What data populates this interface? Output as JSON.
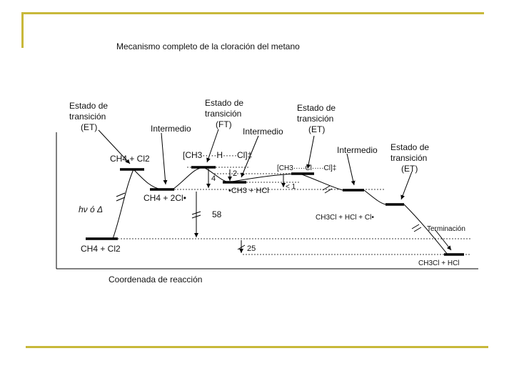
{
  "slide": {
    "title": "Mecanismo completo de la cloración del metano",
    "accent_color": "#c8b83a"
  },
  "diagram": {
    "axis_x_label": "Coordenada de reacción",
    "species": {
      "reactants": "CH4 + Cl2",
      "reactants_ts": "CH4 + Cl2",
      "intermediate_1": "CH4 + 2Cl•",
      "intermediate_2": "•CH3 + HCl",
      "intermediate_3": "CH3Cl + HCl + Cl•",
      "products": "CH3Cl + HCl"
    },
    "transition_states": {
      "ts1_label": "Estado de transición (ET)",
      "ts2_label": "Estado de transición (FT)",
      "ts3_label": "Estado de transición (ET)",
      "ts4_label": "Estado de transición (ET)",
      "complex_1": "[CH3·····H·····Cl]‡",
      "complex_2": "[CH3·····Cl·····Cl]‡"
    },
    "annotations": {
      "intermediate_a": "Intermedio",
      "intermediate_b": "Intermedio",
      "intermediate_c": "Intermedio",
      "activation": "hν ó Δ",
      "terminacion": "Terminación",
      "energies": [
        "4",
        "2",
        "< 1",
        "58",
        "25"
      ]
    }
  }
}
